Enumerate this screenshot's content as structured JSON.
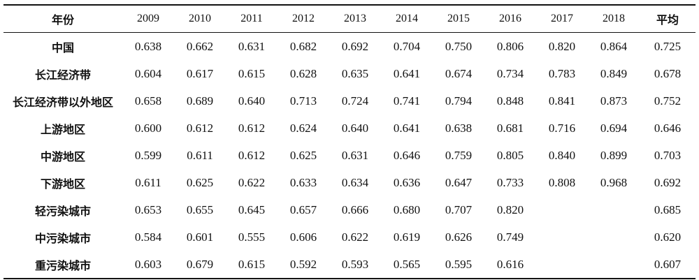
{
  "table": {
    "header": {
      "region_label": "年份",
      "years": [
        "2009",
        "2010",
        "2011",
        "2012",
        "2013",
        "2014",
        "2015",
        "2016",
        "2017",
        "2018"
      ],
      "avg_label": "平均"
    },
    "rows": [
      {
        "region": "中国",
        "values": [
          "0.638",
          "0.662",
          "0.631",
          "0.682",
          "0.692",
          "0.704",
          "0.750",
          "0.806",
          "0.820",
          "0.864"
        ],
        "avg": "0.725"
      },
      {
        "region": "长江经济带",
        "values": [
          "0.604",
          "0.617",
          "0.615",
          "0.628",
          "0.635",
          "0.641",
          "0.674",
          "0.734",
          "0.783",
          "0.849"
        ],
        "avg": "0.678"
      },
      {
        "region": "长江经济带以外地区",
        "values": [
          "0.658",
          "0.689",
          "0.640",
          "0.713",
          "0.724",
          "0.741",
          "0.794",
          "0.848",
          "0.841",
          "0.873"
        ],
        "avg": "0.752"
      },
      {
        "region": "上游地区",
        "values": [
          "0.600",
          "0.612",
          "0.612",
          "0.624",
          "0.640",
          "0.641",
          "0.638",
          "0.681",
          "0.716",
          "0.694"
        ],
        "avg": "0.646"
      },
      {
        "region": "中游地区",
        "values": [
          "0.599",
          "0.611",
          "0.612",
          "0.625",
          "0.631",
          "0.646",
          "0.759",
          "0.805",
          "0.840",
          "0.899"
        ],
        "avg": "0.703"
      },
      {
        "region": "下游地区",
        "values": [
          "0.611",
          "0.625",
          "0.622",
          "0.633",
          "0.634",
          "0.636",
          "0.647",
          "0.733",
          "0.808",
          "0.968"
        ],
        "avg": "0.692"
      },
      {
        "region": "轻污染城市",
        "values": [
          "0.653",
          "0.655",
          "0.645",
          "0.657",
          "0.666",
          "0.680",
          "0.707",
          "0.820",
          "",
          ""
        ],
        "avg": "0.685"
      },
      {
        "region": "中污染城市",
        "values": [
          "0.584",
          "0.601",
          "0.555",
          "0.606",
          "0.622",
          "0.619",
          "0.626",
          "0.749",
          "",
          ""
        ],
        "avg": "0.620"
      },
      {
        "region": "重污染城市",
        "values": [
          "0.603",
          "0.679",
          "0.615",
          "0.592",
          "0.593",
          "0.565",
          "0.595",
          "0.616",
          "",
          ""
        ],
        "avg": "0.607"
      }
    ]
  }
}
